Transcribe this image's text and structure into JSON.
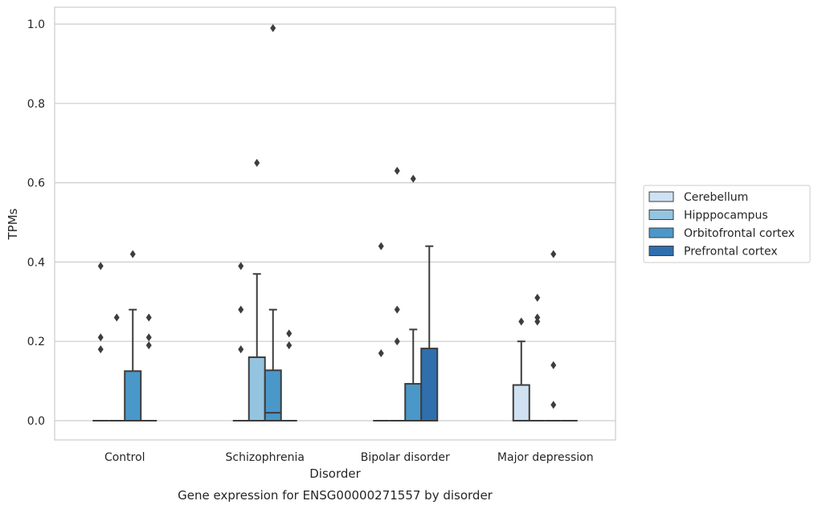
{
  "chart_data": {
    "type": "box",
    "title": "",
    "caption": "Gene expression for ENSG00000271557 by disorder",
    "xlabel": "Disorder",
    "ylabel": "TPMs",
    "ylim": [
      -0.05,
      1.04
    ],
    "yticks": [
      "0.0",
      "0.2",
      "0.4",
      "0.6",
      "0.8",
      "1.0"
    ],
    "grid": "horizontal",
    "legend_position": "right",
    "categories": [
      "Control",
      "Schizophrenia",
      "Bipolar disorder",
      "Major depression"
    ],
    "series": [
      {
        "name": "Cerebellum",
        "color": "#d0e1f2",
        "boxes": [
          {
            "q1": 0,
            "median": 0,
            "q3": 0,
            "whisker_low": 0,
            "whisker_high": 0,
            "outliers": [
              0.18,
              0.21,
              0.39
            ]
          },
          {
            "q1": 0,
            "median": 0,
            "q3": 0,
            "whisker_low": 0,
            "whisker_high": 0,
            "outliers": [
              0.18,
              0.28,
              0.39
            ]
          },
          {
            "q1": 0,
            "median": 0,
            "q3": 0,
            "whisker_low": 0,
            "whisker_high": 0,
            "outliers": [
              0.17,
              0.44
            ]
          },
          {
            "q1": 0,
            "median": 0,
            "q3": 0.09,
            "whisker_low": 0,
            "whisker_high": 0.2,
            "outliers": [
              0.25
            ]
          }
        ]
      },
      {
        "name": "Hipppocampus",
        "color": "#94c4df",
        "boxes": [
          {
            "q1": 0,
            "median": 0,
            "q3": 0,
            "whisker_low": 0,
            "whisker_high": 0,
            "outliers": [
              0.26
            ]
          },
          {
            "q1": 0,
            "median": 0,
            "q3": 0.16,
            "whisker_low": 0,
            "whisker_high": 0.37,
            "outliers": [
              0.65
            ]
          },
          {
            "q1": 0,
            "median": 0,
            "q3": 0,
            "whisker_low": 0,
            "whisker_high": 0,
            "outliers": [
              0.2,
              0.28,
              0.63
            ]
          },
          {
            "q1": 0,
            "median": 0,
            "q3": 0,
            "whisker_low": 0,
            "whisker_high": 0,
            "outliers": [
              0.25,
              0.26,
              0.31
            ]
          }
        ]
      },
      {
        "name": "Orbitofrontal cortex",
        "color": "#4a98c9",
        "boxes": [
          {
            "q1": 0,
            "median": 0,
            "q3": 0.125,
            "whisker_low": 0,
            "whisker_high": 0.28,
            "outliers": [
              0.42
            ]
          },
          {
            "q1": 0,
            "median": 0.02,
            "q3": 0.127,
            "whisker_low": 0,
            "whisker_high": 0.28,
            "outliers": [
              0.99
            ]
          },
          {
            "q1": 0,
            "median": 0,
            "q3": 0.093,
            "whisker_low": 0,
            "whisker_high": 0.23,
            "outliers": [
              0.61
            ]
          },
          {
            "q1": 0,
            "median": 0,
            "q3": 0,
            "whisker_low": 0,
            "whisker_high": 0,
            "outliers": [
              0.04,
              0.14,
              0.42
            ]
          }
        ]
      },
      {
        "name": "Prefrontal cortex",
        "color": "#2f6fae",
        "boxes": [
          {
            "q1": 0,
            "median": 0,
            "q3": 0,
            "whisker_low": 0,
            "whisker_high": 0,
            "outliers": [
              0.19,
              0.21,
              0.26
            ]
          },
          {
            "q1": 0,
            "median": 0,
            "q3": 0,
            "whisker_low": 0,
            "whisker_high": 0,
            "outliers": [
              0.19,
              0.22
            ]
          },
          {
            "q1": 0,
            "median": 0,
            "q3": 0.182,
            "whisker_low": 0,
            "whisker_high": 0.44,
            "outliers": []
          },
          {
            "q1": 0,
            "median": 0,
            "q3": 0,
            "whisker_low": 0,
            "whisker_high": 0,
            "outliers": []
          }
        ]
      }
    ]
  }
}
